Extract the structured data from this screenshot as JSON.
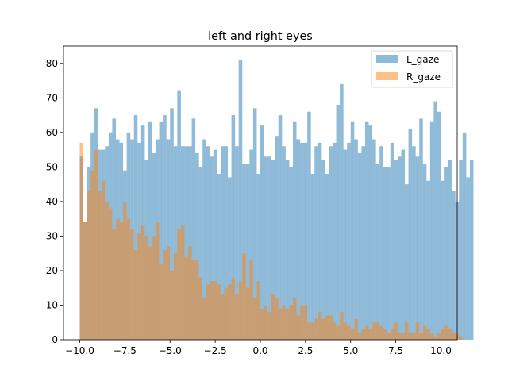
{
  "chart_data": {
    "type": "histogram",
    "title": "left and right eyes",
    "xlabel": "",
    "ylabel": "",
    "xlim": [
      -10.9,
      10.9
    ],
    "ylim": [
      0,
      85
    ],
    "bin_start": -10,
    "bin_width": 0.2,
    "x_ticks": [
      -10.0,
      -7.5,
      -5.0,
      -2.5,
      0.0,
      2.5,
      5.0,
      7.5,
      10.0
    ],
    "x_tick_labels": [
      "−10.0",
      "−7.5",
      "−5.0",
      "−2.5",
      "0.0",
      "2.5",
      "5.0",
      "7.5",
      "10.0"
    ],
    "y_ticks": [
      0,
      10,
      20,
      30,
      40,
      50,
      60,
      70,
      80
    ],
    "y_tick_labels": [
      "0",
      "10",
      "20",
      "30",
      "40",
      "50",
      "60",
      "70",
      "80"
    ],
    "legend_position": "top-right",
    "grid": false,
    "series": [
      {
        "name": "L_gaze",
        "color": "#1f77b4",
        "alpha": 0.5,
        "values": [
          53,
          34,
          50,
          60,
          67,
          55,
          55,
          56,
          60,
          64,
          58,
          57,
          49,
          60,
          58,
          65,
          57,
          62,
          52,
          63,
          54,
          58,
          63,
          65,
          58,
          67,
          56,
          72,
          56,
          56,
          56,
          64,
          54,
          50,
          58,
          56,
          53,
          55,
          48,
          56,
          56,
          47,
          65,
          56,
          81,
          51,
          51,
          55,
          67,
          48,
          62,
          53,
          53,
          52,
          59,
          65,
          56,
          52,
          50,
          63,
          58,
          57,
          57,
          66,
          48,
          56,
          57,
          52,
          48,
          56,
          57,
          68,
          74,
          55,
          57,
          63,
          58,
          54,
          56,
          63,
          62,
          58,
          51,
          56,
          50,
          50,
          57,
          52,
          53,
          55,
          45,
          61,
          56,
          53,
          64,
          51,
          46,
          63,
          69,
          66,
          46,
          50,
          52,
          43,
          40,
          52,
          60,
          47,
          52
        ]
      },
      {
        "name": "R_gaze",
        "color": "#ff7f0e",
        "alpha": 0.5,
        "values": [
          57,
          34,
          43,
          49,
          55,
          43,
          46,
          40,
          38,
          32,
          35,
          34,
          40,
          35,
          32,
          26,
          31,
          33,
          30,
          27,
          30,
          34,
          22,
          26,
          27,
          20,
          25,
          32,
          33,
          24,
          27,
          23,
          23,
          18,
          12,
          16,
          17,
          17,
          16,
          13,
          15,
          16,
          18,
          13,
          17,
          25,
          15,
          23,
          12,
          17,
          9,
          10,
          8,
          13,
          12,
          9,
          10,
          9,
          10,
          12,
          7,
          10,
          10,
          5,
          5,
          6,
          8,
          6,
          7,
          7,
          5,
          4,
          8,
          5,
          4,
          3,
          6,
          2,
          3,
          4,
          3,
          5,
          5,
          4,
          3,
          2,
          3,
          5,
          2,
          2,
          5,
          2,
          2,
          5,
          2,
          4,
          3,
          2,
          1,
          2,
          3,
          4,
          3,
          2,
          2,
          1
        ]
      }
    ]
  }
}
